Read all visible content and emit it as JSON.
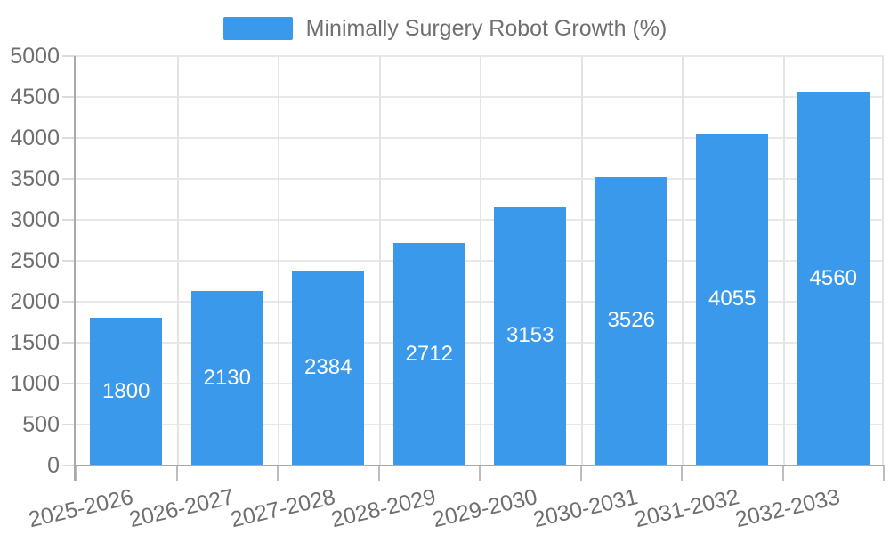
{
  "chart_data": {
    "type": "bar",
    "title": "Minimally Surgery Robot Growth (%)",
    "legend": {
      "label": "Minimally Surgery Robot Growth (%)",
      "position": "top-center"
    },
    "categories": [
      "2025-2026",
      "2026-2027",
      "2027-2028",
      "2028-2029",
      "2029-2030",
      "2030-2031",
      "2031-2032",
      "2032-2033"
    ],
    "series": [
      {
        "name": "Minimally Surgery Robot Growth (%)",
        "values": [
          1800,
          2130,
          2384,
          2712,
          3153,
          3526,
          4055,
          4560
        ]
      }
    ],
    "value_labels_shown": true,
    "xlabel": "",
    "ylabel": "",
    "ylim": [
      0,
      5000
    ],
    "y_ticks": [
      0,
      500,
      1000,
      1500,
      2000,
      2500,
      3000,
      3500,
      4000,
      4500,
      5000
    ],
    "grid": "horizontal and vertical light gridlines",
    "x_label_rotation_deg": -13,
    "colors": {
      "bar": "#3b99ec",
      "legend_swatch": "#3b99ec",
      "axis_line": "#a9a9a9",
      "gridline": "#e8e8e8",
      "tick_label_text": "#6f6f6f",
      "bar_value_text": "#ffffff",
      "background": "#ffffff"
    }
  }
}
